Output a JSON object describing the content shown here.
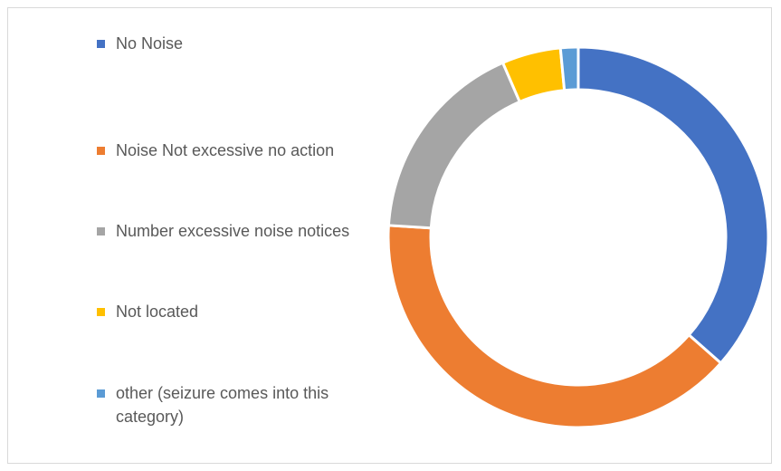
{
  "chart_data": {
    "type": "pie",
    "variant": "donut",
    "title": "",
    "categories": [
      "No Noise",
      "Noise Not excessive no action",
      "Number excessive noise notices",
      "Not located",
      "other (seizure comes into this category)"
    ],
    "values": [
      36.5,
      39.5,
      17.5,
      5,
      1.5
    ],
    "colors": [
      "#4472C4",
      "#ED7D31",
      "#A5A5A5",
      "#FFC000",
      "#5B9BD5"
    ],
    "legend_position": "left",
    "grid": false
  }
}
